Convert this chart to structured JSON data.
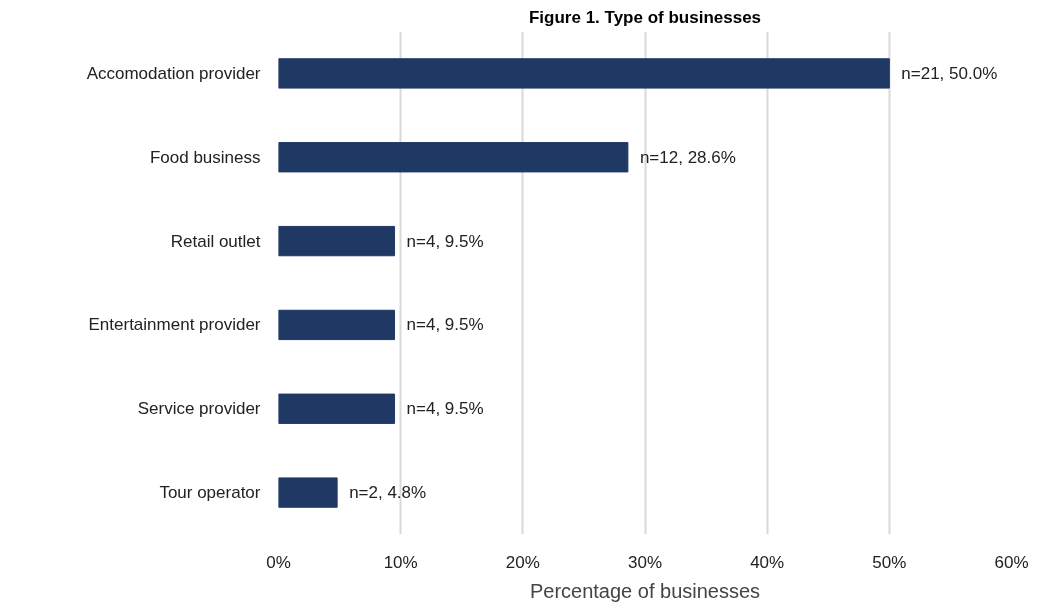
{
  "chart_data": {
    "type": "bar",
    "orientation": "horizontal",
    "title": "Figure 1. Type of businesses",
    "xlabel": "Percentage of businesses",
    "categories": [
      "Accomodation provider",
      "Food business",
      "Retail outlet",
      "Entertainment provider",
      "Service provider",
      "Tour operator"
    ],
    "values": [
      50.0,
      28.6,
      9.5,
      9.5,
      9.5,
      4.8
    ],
    "value_labels": [
      "n=21, 50.0%",
      "n=12, 28.6%",
      "n=4, 9.5%",
      "n=4, 9.5%",
      "n=4, 9.5%",
      "n=2, 4.8%"
    ],
    "color": "#203864",
    "xlim": [
      0,
      60
    ],
    "xticks": [
      {
        "value": 0,
        "label": "0%"
      },
      {
        "value": 10,
        "label": "10%"
      },
      {
        "value": 20,
        "label": "20%"
      },
      {
        "value": 30,
        "label": "30%"
      },
      {
        "value": 40,
        "label": "40%"
      },
      {
        "value": 50,
        "label": "50%"
      },
      {
        "value": 60,
        "label": "60%"
      }
    ],
    "grid": "x"
  }
}
